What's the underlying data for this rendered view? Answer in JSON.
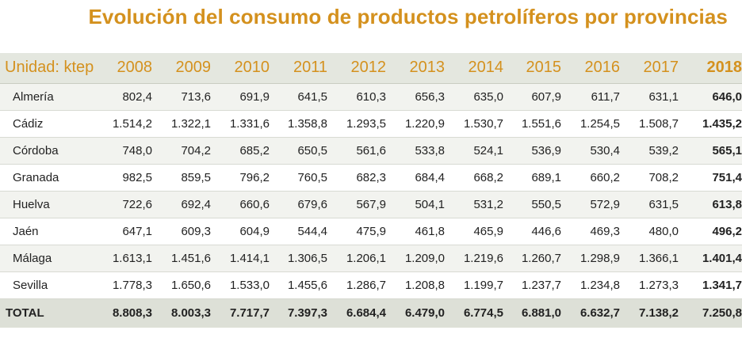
{
  "title": "Evolución del consumo de productos petrolíferos por provincias",
  "colors": {
    "accent": "#d4911e",
    "header_bg": "#e4e7df",
    "row_alt": "#f2f3ef",
    "total_bg": "#dde0d7"
  },
  "table": {
    "unit_label": "Unidad: ktep",
    "years": [
      "2008",
      "2009",
      "2010",
      "2011",
      "2012",
      "2013",
      "2014",
      "2015",
      "2016",
      "2017",
      "2018"
    ],
    "rows": [
      {
        "name": "Almería",
        "values": [
          "802,4",
          "713,6",
          "691,9",
          "641,5",
          "610,3",
          "656,3",
          "635,0",
          "607,9",
          "611,7",
          "631,1",
          "646,0"
        ]
      },
      {
        "name": "Cádiz",
        "values": [
          "1.514,2",
          "1.322,1",
          "1.331,6",
          "1.358,8",
          "1.293,5",
          "1.220,9",
          "1.530,7",
          "1.551,6",
          "1.254,5",
          "1.508,7",
          "1.435,2"
        ]
      },
      {
        "name": "Córdoba",
        "values": [
          "748,0",
          "704,2",
          "685,2",
          "650,5",
          "561,6",
          "533,8",
          "524,1",
          "536,9",
          "530,4",
          "539,2",
          "565,1"
        ]
      },
      {
        "name": "Granada",
        "values": [
          "982,5",
          "859,5",
          "796,2",
          "760,5",
          "682,3",
          "684,4",
          "668,2",
          "689,1",
          "660,2",
          "708,2",
          "751,4"
        ]
      },
      {
        "name": "Huelva",
        "values": [
          "722,6",
          "692,4",
          "660,6",
          "679,6",
          "567,9",
          "504,1",
          "531,2",
          "550,5",
          "572,9",
          "631,5",
          "613,8"
        ]
      },
      {
        "name": "Jaén",
        "values": [
          "647,1",
          "609,3",
          "604,9",
          "544,4",
          "475,9",
          "461,8",
          "465,9",
          "446,6",
          "469,3",
          "480,0",
          "496,2"
        ]
      },
      {
        "name": "Málaga",
        "values": [
          "1.613,1",
          "1.451,6",
          "1.414,1",
          "1.306,5",
          "1.206,1",
          "1.209,0",
          "1.219,6",
          "1.260,7",
          "1.298,9",
          "1.366,1",
          "1.401,4"
        ]
      },
      {
        "name": "Sevilla",
        "values": [
          "1.778,3",
          "1.650,6",
          "1.533,0",
          "1.455,6",
          "1.286,7",
          "1.208,8",
          "1.199,7",
          "1.237,7",
          "1.234,8",
          "1.273,3",
          "1.341,7"
        ]
      }
    ],
    "total": {
      "name": "TOTAL",
      "values": [
        "8.808,3",
        "8.003,3",
        "7.717,7",
        "7.397,3",
        "6.684,4",
        "6.479,0",
        "6.774,5",
        "6.881,0",
        "6.632,7",
        "7.138,2",
        "7.250,8"
      ]
    }
  }
}
